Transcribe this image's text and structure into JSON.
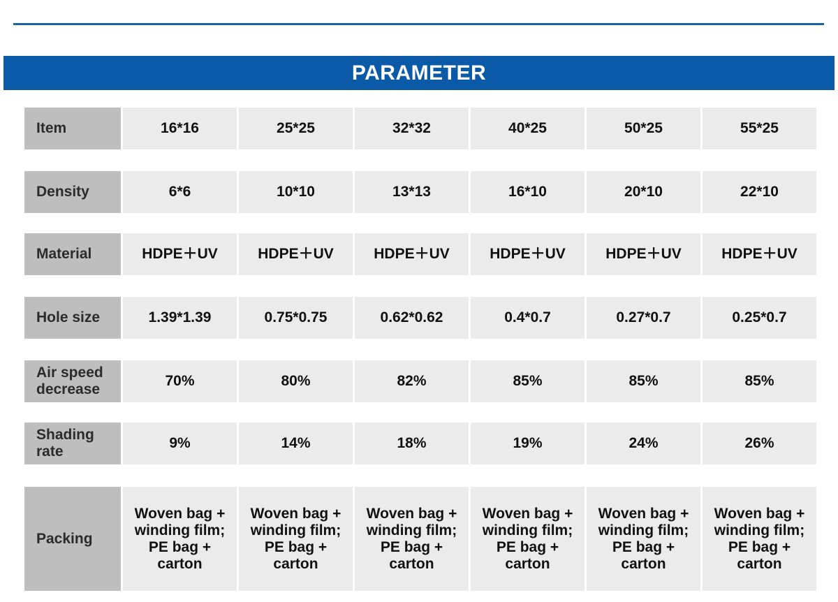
{
  "header": {
    "title": "PARAMETER"
  },
  "rows": [
    {
      "label": "Item",
      "values": [
        "16*16",
        "25*25",
        "32*32",
        "40*25",
        "50*25",
        "55*25"
      ]
    },
    {
      "label": "Density",
      "values": [
        "6*6",
        "10*10",
        "13*13",
        "16*10",
        "20*10",
        "22*10"
      ]
    },
    {
      "label": "Material",
      "values": [
        "HDPE＋UV",
        "HDPE＋UV",
        "HDPE＋UV",
        "HDPE＋UV",
        "HDPE＋UV",
        "HDPE＋UV"
      ]
    },
    {
      "label": "Hole size",
      "values": [
        "1.39*1.39",
        "0.75*0.75",
        "0.62*0.62",
        "0.4*0.7",
        "0.27*0.7",
        "0.25*0.7"
      ]
    },
    {
      "label": "Air speed decrease",
      "values": [
        "70%",
        "80%",
        "82%",
        "85%",
        "85%",
        "85%"
      ]
    },
    {
      "label": "Shading rate",
      "values": [
        "9%",
        "14%",
        "18%",
        "19%",
        "24%",
        "26%"
      ]
    },
    {
      "label": "Packing",
      "values": [
        "Woven bag + winding film; PE bag + carton",
        "Woven bag + winding film; PE bag + carton",
        "Woven bag + winding film; PE bag + carton",
        "Woven bag + winding film; PE bag + carton",
        "Woven bag + winding film; PE bag + carton",
        "Woven bag + winding film; PE bag + carton"
      ]
    }
  ],
  "colors": {
    "banner": "#0b5aa8",
    "rule": "#1a64a8",
    "label_bg": "#bebebe",
    "cell_bg": "#ebebeb"
  }
}
